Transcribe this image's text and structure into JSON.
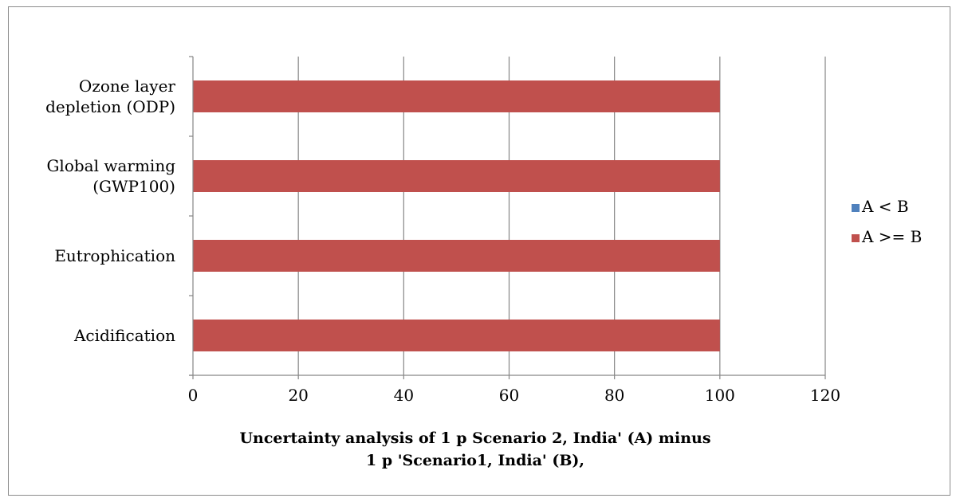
{
  "chart_data": {
    "type": "bar",
    "orientation": "horizontal",
    "stacked": true,
    "categories": [
      "Acidification",
      "Eutrophication",
      "Global warming (GWP100)",
      "Ozone layer depletion (ODP)"
    ],
    "category_label_lines": [
      [
        "Acidification"
      ],
      [
        "Eutrophication"
      ],
      [
        "Global warming",
        "(GWP100)"
      ],
      [
        "Ozone layer",
        "depletion (ODP)"
      ]
    ],
    "series": [
      {
        "name": "A < B",
        "values": [
          0,
          0,
          0,
          0
        ],
        "color": "#4f81bd"
      },
      {
        "name": "A >= B",
        "values": [
          100,
          100,
          100,
          100
        ],
        "color": "#c0504d"
      }
    ],
    "xlim": [
      0,
      120
    ],
    "xticks": [
      0,
      20,
      40,
      60,
      80,
      100,
      120
    ],
    "xlabel_lines": [
      "Uncertainty analysis of 1 p Scenario 2, India' (A) minus",
      "1 p 'Scenario1, India' (B),"
    ],
    "grid": "vertical",
    "legend_position": "right"
  }
}
